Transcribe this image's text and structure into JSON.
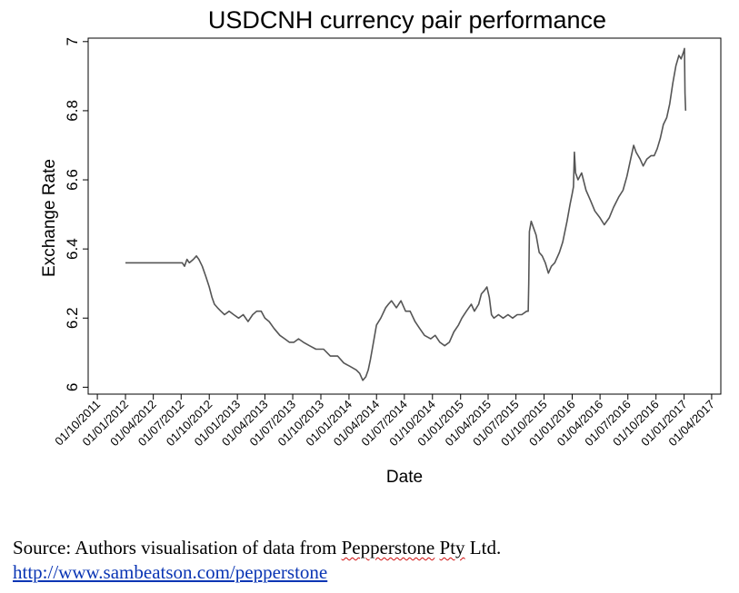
{
  "chart_data": {
    "type": "line",
    "title": "USDCNH currency pair performance",
    "xlabel": "Date",
    "ylabel": "Exchange Rate",
    "x_ticks": [
      "01/10/2011",
      "01/01/2012",
      "01/04/2012",
      "01/07/2012",
      "01/10/2012",
      "01/01/2013",
      "01/04/2013",
      "01/07/2013",
      "01/10/2013",
      "01/01/2014",
      "01/04/2014",
      "01/07/2014",
      "01/10/2014",
      "01/01/2015",
      "01/04/2015",
      "01/07/2015",
      "01/10/2015",
      "01/01/2016",
      "01/04/2016",
      "01/07/2016",
      "01/10/2016",
      "01/01/2017",
      "01/04/2017"
    ],
    "y_ticks": [
      "6",
      "6.2",
      "6.4",
      "6.6",
      "6.8",
      "7"
    ],
    "xlim": [
      "2011-09-01",
      "2017-05-01"
    ],
    "ylim": [
      5.98,
      7.01
    ],
    "grid": false,
    "legend": "none",
    "line_color": "#555555",
    "series": [
      {
        "points": [
          [
            "2012-01-01",
            6.36
          ],
          [
            "2012-03-01",
            6.36
          ],
          [
            "2012-05-01",
            6.36
          ],
          [
            "2012-07-05",
            6.36
          ],
          [
            "2012-07-12",
            6.35
          ],
          [
            "2012-07-20",
            6.37
          ],
          [
            "2012-07-28",
            6.36
          ],
          [
            "2012-08-10",
            6.37
          ],
          [
            "2012-08-20",
            6.38
          ],
          [
            "2012-08-28",
            6.37
          ],
          [
            "2012-09-08",
            6.35
          ],
          [
            "2012-09-20",
            6.32
          ],
          [
            "2012-10-01",
            6.29
          ],
          [
            "2012-10-10",
            6.26
          ],
          [
            "2012-10-18",
            6.24
          ],
          [
            "2012-10-28",
            6.23
          ],
          [
            "2012-11-08",
            6.22
          ],
          [
            "2012-11-20",
            6.21
          ],
          [
            "2012-12-05",
            6.22
          ],
          [
            "2012-12-20",
            6.21
          ],
          [
            "2013-01-05",
            6.2
          ],
          [
            "2013-01-20",
            6.21
          ],
          [
            "2013-02-05",
            6.19
          ],
          [
            "2013-02-20",
            6.21
          ],
          [
            "2013-03-05",
            6.22
          ],
          [
            "2013-03-20",
            6.22
          ],
          [
            "2013-04-01",
            6.2
          ],
          [
            "2013-04-15",
            6.19
          ],
          [
            "2013-05-01",
            6.17
          ],
          [
            "2013-05-20",
            6.15
          ],
          [
            "2013-06-05",
            6.14
          ],
          [
            "2013-06-20",
            6.13
          ],
          [
            "2013-07-05",
            6.13
          ],
          [
            "2013-07-20",
            6.14
          ],
          [
            "2013-08-05",
            6.13
          ],
          [
            "2013-08-25",
            6.12
          ],
          [
            "2013-09-15",
            6.11
          ],
          [
            "2013-10-10",
            6.11
          ],
          [
            "2013-11-01",
            6.09
          ],
          [
            "2013-11-25",
            6.09
          ],
          [
            "2013-12-15",
            6.07
          ],
          [
            "2014-01-05",
            6.06
          ],
          [
            "2014-01-25",
            6.05
          ],
          [
            "2014-02-05",
            6.04
          ],
          [
            "2014-02-15",
            6.02
          ],
          [
            "2014-02-25",
            6.03
          ],
          [
            "2014-03-05",
            6.05
          ],
          [
            "2014-03-12",
            6.08
          ],
          [
            "2014-03-20",
            6.12
          ],
          [
            "2014-04-01",
            6.18
          ],
          [
            "2014-04-15",
            6.2
          ],
          [
            "2014-05-01",
            6.23
          ],
          [
            "2014-05-10",
            6.24
          ],
          [
            "2014-05-20",
            6.25
          ],
          [
            "2014-06-05",
            6.23
          ],
          [
            "2014-06-20",
            6.25
          ],
          [
            "2014-07-05",
            6.22
          ],
          [
            "2014-07-20",
            6.22
          ],
          [
            "2014-08-05",
            6.19
          ],
          [
            "2014-08-20",
            6.17
          ],
          [
            "2014-09-05",
            6.15
          ],
          [
            "2014-09-25",
            6.14
          ],
          [
            "2014-10-10",
            6.15
          ],
          [
            "2014-10-25",
            6.13
          ],
          [
            "2014-11-10",
            6.12
          ],
          [
            "2014-11-25",
            6.13
          ],
          [
            "2014-12-10",
            6.16
          ],
          [
            "2014-12-25",
            6.18
          ],
          [
            "2015-01-05",
            6.2
          ],
          [
            "2015-01-20",
            6.22
          ],
          [
            "2015-02-05",
            6.24
          ],
          [
            "2015-02-15",
            6.22
          ],
          [
            "2015-03-01",
            6.24
          ],
          [
            "2015-03-10",
            6.27
          ],
          [
            "2015-03-20",
            6.28
          ],
          [
            "2015-03-28",
            6.29
          ],
          [
            "2015-04-05",
            6.26
          ],
          [
            "2015-04-12",
            6.21
          ],
          [
            "2015-04-20",
            6.2
          ],
          [
            "2015-05-05",
            6.21
          ],
          [
            "2015-05-20",
            6.2
          ],
          [
            "2015-06-05",
            6.21
          ],
          [
            "2015-06-20",
            6.2
          ],
          [
            "2015-07-05",
            6.21
          ],
          [
            "2015-07-20",
            6.21
          ],
          [
            "2015-08-05",
            6.22
          ],
          [
            "2015-08-10",
            6.22
          ],
          [
            "2015-08-12",
            6.3
          ],
          [
            "2015-08-14",
            6.45
          ],
          [
            "2015-08-20",
            6.48
          ],
          [
            "2015-08-28",
            6.46
          ],
          [
            "2015-09-05",
            6.44
          ],
          [
            "2015-09-15",
            6.39
          ],
          [
            "2015-09-25",
            6.38
          ],
          [
            "2015-10-05",
            6.36
          ],
          [
            "2015-10-15",
            6.33
          ],
          [
            "2015-10-25",
            6.35
          ],
          [
            "2015-11-05",
            6.36
          ],
          [
            "2015-11-20",
            6.39
          ],
          [
            "2015-12-01",
            6.42
          ],
          [
            "2015-12-15",
            6.48
          ],
          [
            "2015-12-25",
            6.53
          ],
          [
            "2016-01-01",
            6.56
          ],
          [
            "2016-01-05",
            6.58
          ],
          [
            "2016-01-08",
            6.68
          ],
          [
            "2016-01-12",
            6.62
          ],
          [
            "2016-01-20",
            6.6
          ],
          [
            "2016-02-01",
            6.62
          ],
          [
            "2016-02-15",
            6.57
          ],
          [
            "2016-03-01",
            6.54
          ],
          [
            "2016-03-15",
            6.51
          ],
          [
            "2016-04-01",
            6.49
          ],
          [
            "2016-04-15",
            6.47
          ],
          [
            "2016-05-01",
            6.49
          ],
          [
            "2016-05-15",
            6.52
          ],
          [
            "2016-06-01",
            6.55
          ],
          [
            "2016-06-15",
            6.57
          ],
          [
            "2016-06-28",
            6.61
          ],
          [
            "2016-07-10",
            6.66
          ],
          [
            "2016-07-20",
            6.7
          ],
          [
            "2016-07-28",
            6.68
          ],
          [
            "2016-08-10",
            6.66
          ],
          [
            "2016-08-20",
            6.64
          ],
          [
            "2016-09-01",
            6.66
          ],
          [
            "2016-09-15",
            6.67
          ],
          [
            "2016-09-25",
            6.67
          ],
          [
            "2016-10-05",
            6.69
          ],
          [
            "2016-10-15",
            6.72
          ],
          [
            "2016-10-25",
            6.76
          ],
          [
            "2016-11-05",
            6.78
          ],
          [
            "2016-11-15",
            6.82
          ],
          [
            "2016-11-25",
            6.88
          ],
          [
            "2016-12-05",
            6.93
          ],
          [
            "2016-12-15",
            6.96
          ],
          [
            "2016-12-22",
            6.95
          ],
          [
            "2016-12-30",
            6.97
          ],
          [
            "2017-01-02",
            6.98
          ],
          [
            "2017-01-04",
            6.85
          ],
          [
            "2017-01-06",
            6.8
          ]
        ]
      }
    ]
  },
  "source": {
    "prefix": "Source: Authors visualisation of data from ",
    "company_first": "Pepperstone",
    "company_second": "Pty",
    "suffix": " Ltd.",
    "url": "http://www.sambeatson.com/pepperstone"
  }
}
